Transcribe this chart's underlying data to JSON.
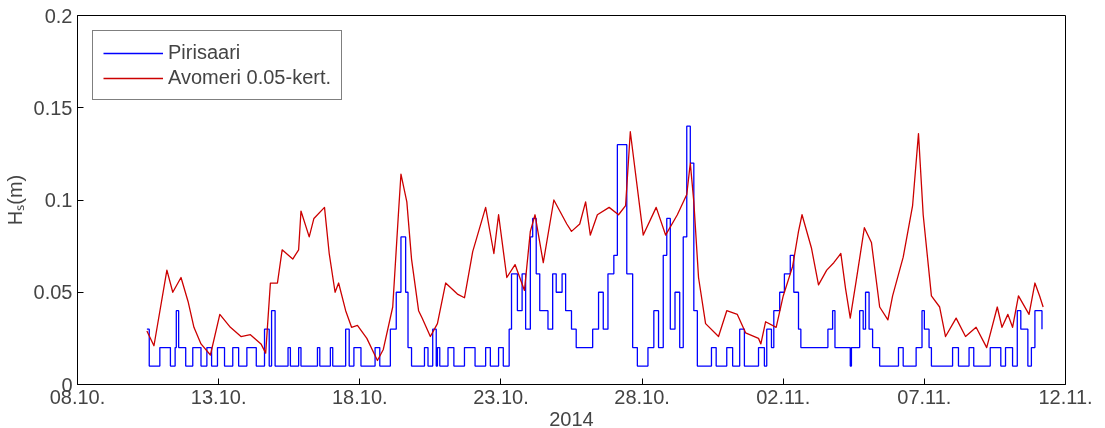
{
  "chart_data": {
    "type": "line",
    "xlabel": "2014",
    "ylabel": "Hₛ(m)",
    "xlim": [
      "2014-10-08",
      "2014-11-12"
    ],
    "xticks": [
      {
        "value": "2014-10-08",
        "label": "08.10."
      },
      {
        "value": "2014-10-13",
        "label": "13.10."
      },
      {
        "value": "2014-10-18",
        "label": "18.10."
      },
      {
        "value": "2014-10-23",
        "label": "23.10."
      },
      {
        "value": "2014-10-28",
        "label": "28.10."
      },
      {
        "value": "2014-11-02",
        "label": "02.11."
      },
      {
        "value": "2014-11-07",
        "label": "07.11."
      },
      {
        "value": "2014-11-12",
        "label": "12.11."
      }
    ],
    "ylim": [
      0,
      0.2
    ],
    "yticks": [
      0,
      0.05,
      0.1,
      0.15,
      0.2
    ],
    "grid": false,
    "legend": "top left",
    "series": [
      {
        "name": "Pirisaari",
        "type": "step",
        "color": "#0000ff",
        "x": [
          "2014-10-10T11:00",
          "2014-10-10T13:00",
          "2014-10-10T22:00",
          "2014-10-11T07:00",
          "2014-10-11T11:00",
          "2014-10-11T12:00",
          "2014-10-11T14:00",
          "2014-10-11T20:00",
          "2014-10-12T02:00",
          "2014-10-12T09:00",
          "2014-10-12T14:00",
          "2014-10-12T18:00",
          "2014-10-12T23:00",
          "2014-10-13T05:00",
          "2014-10-13T12:00",
          "2014-10-13T17:00",
          "2014-10-14T00:00",
          "2014-10-14T08:00",
          "2014-10-14T15:00",
          "2014-10-14T19:00",
          "2014-10-14T21:00",
          "2014-10-15T00:00",
          "2014-10-15T11:00",
          "2014-10-15T13:00",
          "2014-10-15T20:00",
          "2014-10-15T22:00",
          "2014-10-16T12:00",
          "2014-10-16T14:00",
          "2014-10-16T23:00",
          "2014-10-17T01:00",
          "2014-10-17T12:00",
          "2014-10-17T15:00",
          "2014-10-17T19:00",
          "2014-10-18T01:00",
          "2014-10-18T13:00",
          "2014-10-18T17:00",
          "2014-10-19T02:00",
          "2014-10-19T07:00",
          "2014-10-19T11:00",
          "2014-10-19T15:00",
          "2014-10-19T17:00",
          "2014-10-19T20:00",
          "2014-10-20T07:00",
          "2014-10-20T10:00",
          "2014-10-20T14:00",
          "2014-10-20T17:00",
          "2014-10-20T18:00",
          "2014-10-20T20:00",
          "2014-10-21T03:00",
          "2014-10-21T08:00",
          "2014-10-21T17:00",
          "2014-10-22T02:00",
          "2014-10-22T11:00",
          "2014-10-22T15:00",
          "2014-10-22T22:00",
          "2014-10-23T02:00",
          "2014-10-23T07:00",
          "2014-10-23T09:00",
          "2014-10-23T14:00",
          "2014-10-23T18:00",
          "2014-10-23T21:00",
          "2014-10-24T01:00",
          "2014-10-24T03:00",
          "2014-10-24T06:00",
          "2014-10-24T09:00",
          "2014-10-24T14:00",
          "2014-10-24T16:00",
          "2014-10-24T20:00",
          "2014-10-24T23:00",
          "2014-10-25T04:00",
          "2014-10-25T07:00",
          "2014-10-25T12:00",
          "2014-10-25T16:00",
          "2014-10-26T00:00",
          "2014-10-26T06:00",
          "2014-10-26T11:00",
          "2014-10-26T15:00",
          "2014-10-26T19:00",
          "2014-10-27T00:00",
          "2014-10-27T03:00",
          "2014-10-27T09:00",
          "2014-10-27T11:00",
          "2014-10-27T16:00",
          "2014-10-27T20:00",
          "2014-10-28T01:00",
          "2014-10-28T05:00",
          "2014-10-28T10:00",
          "2014-10-28T14:00",
          "2014-10-28T18:00",
          "2014-10-28T21:00",
          "2014-10-29T00:00",
          "2014-10-29T04:00",
          "2014-10-29T08:00",
          "2014-10-29T11:00",
          "2014-10-29T14:00",
          "2014-10-29T17:00",
          "2014-10-29T20:00",
          "2014-10-29T23:00",
          "2014-10-30T11:00",
          "2014-10-30T15:00",
          "2014-10-31T00:00",
          "2014-10-31T05:00",
          "2014-10-31T11:00",
          "2014-10-31T15:00",
          "2014-10-31T23:00",
          "2014-11-01T03:00",
          "2014-11-01T08:00",
          "2014-11-01T10:00",
          "2014-11-01T14:00",
          "2014-11-01T16:00",
          "2014-11-01T21:00",
          "2014-11-02T01:00",
          "2014-11-02T06:00",
          "2014-11-02T09:00",
          "2014-11-02T13:00",
          "2014-11-02T15:00",
          "2014-11-02T22:00",
          "2014-11-03T09:00",
          "2014-11-03T14:00",
          "2014-11-03T18:00",
          "2014-11-03T20:00",
          "2014-11-04T09:00",
          "2014-11-04T10:00",
          "2014-11-04T17:00",
          "2014-11-04T20:00",
          "2014-11-04T22:00",
          "2014-11-05T01:00",
          "2014-11-05T04:00",
          "2014-11-05T10:00",
          "2014-11-05T17:00",
          "2014-11-06T02:00",
          "2014-11-06T06:00",
          "2014-11-06T17:00",
          "2014-11-06T22:00",
          "2014-11-07T00:00",
          "2014-11-07T04:00",
          "2014-11-07T06:00",
          "2014-11-07T15:00",
          "2014-11-08T00:00",
          "2014-11-08T05:00",
          "2014-11-08T14:00",
          "2014-11-08T18:00",
          "2014-11-09T03:00",
          "2014-11-09T08:00",
          "2014-11-09T17:00",
          "2014-11-09T21:00",
          "2014-11-10T03:00",
          "2014-11-10T07:00",
          "2014-11-10T10:00",
          "2014-11-10T16:00",
          "2014-11-10T19:00",
          "2014-11-10T22:00",
          "2014-11-11T04:00"
        ],
        "values": [
          0.03,
          0.01,
          0.02,
          0.01,
          0.02,
          0.04,
          0.02,
          0.01,
          0.02,
          0.01,
          0.02,
          0.01,
          0.02,
          0.01,
          0.02,
          0.01,
          0.02,
          0.01,
          0.03,
          0.01,
          0.04,
          0.01,
          0.02,
          0.01,
          0.02,
          0.01,
          0.02,
          0.01,
          0.02,
          0.01,
          0.03,
          0.01,
          0.02,
          0.01,
          0.02,
          0.01,
          0.03,
          0.05,
          0.08,
          0.05,
          0.02,
          0.01,
          0.02,
          0.01,
          0.03,
          0.01,
          0.02,
          0.01,
          0.02,
          0.01,
          0.02,
          0.01,
          0.02,
          0.01,
          0.02,
          0.01,
          0.03,
          0.06,
          0.04,
          0.06,
          0.03,
          0.08,
          0.09,
          0.06,
          0.04,
          0.04,
          0.03,
          0.06,
          0.05,
          0.06,
          0.04,
          0.03,
          0.02,
          0.02,
          0.03,
          0.05,
          0.03,
          0.06,
          0.07,
          0.13,
          0.13,
          0.06,
          0.02,
          0.01,
          0.01,
          0.02,
          0.04,
          0.02,
          0.07,
          0.09,
          0.03,
          0.05,
          0.02,
          0.08,
          0.14,
          0.12,
          0.04,
          0.01,
          0.02,
          0.01,
          0.02,
          0.01,
          0.03,
          0.01,
          0.01,
          0.02,
          0.01,
          0.03,
          0.02,
          0.04,
          0.05,
          0.06,
          0.07,
          0.05,
          0.03,
          0.02,
          0.02,
          0.02,
          0.03,
          0.04,
          0.02,
          0.01,
          0.02,
          0.04,
          0.03,
          0.05,
          0.03,
          0.02,
          0.01,
          0.01,
          0.02,
          0.01,
          0.02,
          0.04,
          0.03,
          0.02,
          0.01,
          0.01,
          0.02,
          0.01,
          0.02,
          0.01,
          0.01,
          0.02,
          0.01,
          0.02,
          0.01,
          0.04,
          0.03,
          0.01,
          0.02,
          0.04,
          0.03
        ]
      },
      {
        "name": "Avomeri 0.05-kert.",
        "color": "#cc0000",
        "x": [
          "2014-10-10T11:00",
          "2014-10-10T17:00",
          "2014-10-11T04:00",
          "2014-10-11T09:00",
          "2014-10-11T16:00",
          "2014-10-11T22:00",
          "2014-10-12T03:00",
          "2014-10-12T09:00",
          "2014-10-12T17:00",
          "2014-10-13T01:00",
          "2014-10-13T10:00",
          "2014-10-13T19:00",
          "2014-10-14T03:00",
          "2014-10-14T12:00",
          "2014-10-14T16:00",
          "2014-10-14T20:00",
          "2014-10-15T02:00",
          "2014-10-15T06:00",
          "2014-10-15T15:00",
          "2014-10-15T20:00",
          "2014-10-15T22:00",
          "2014-10-16T05:00",
          "2014-10-16T09:00",
          "2014-10-16T18:00",
          "2014-10-16T22:00",
          "2014-10-17T03:00",
          "2014-10-17T06:00",
          "2014-10-17T12:00",
          "2014-10-17T17:00",
          "2014-10-17T22:00",
          "2014-10-18T06:00",
          "2014-10-18T15:00",
          "2014-10-18T20:00",
          "2014-10-19T04:00",
          "2014-10-19T09:00",
          "2014-10-19T11:00",
          "2014-10-19T16:00",
          "2014-10-19T20:00",
          "2014-10-20T02:00",
          "2014-10-20T05:00",
          "2014-10-20T12:00",
          "2014-10-20T18:00",
          "2014-10-21T01:00",
          "2014-10-21T11:00",
          "2014-10-21T17:00",
          "2014-10-22T00:00",
          "2014-10-22T11:00",
          "2014-10-22T18:00",
          "2014-10-22T22:00",
          "2014-10-23T05:00",
          "2014-10-23T12:00",
          "2014-10-23T20:00",
          "2014-10-24T01:00",
          "2014-10-24T05:00",
          "2014-10-24T12:00",
          "2014-10-24T21:00",
          "2014-10-25T08:00",
          "2014-10-25T12:00",
          "2014-10-25T19:00",
          "2014-10-26T00:00",
          "2014-10-26T04:00",
          "2014-10-26T10:00",
          "2014-10-26T20:00",
          "2014-10-27T04:00",
          "2014-10-27T10:00",
          "2014-10-27T14:00",
          "2014-10-28T01:00",
          "2014-10-28T12:00",
          "2014-10-28T20:00",
          "2014-10-29T06:00",
          "2014-10-29T14:00",
          "2014-10-29T17:00",
          "2014-10-29T20:00",
          "2014-10-30T00:00",
          "2014-10-30T06:00",
          "2014-10-30T17:00",
          "2014-10-31T00:00",
          "2014-10-31T09:00",
          "2014-10-31T16:00",
          "2014-11-01T03:00",
          "2014-11-01T05:00",
          "2014-11-01T09:00",
          "2014-11-01T18:00",
          "2014-11-02T00:00",
          "2014-11-02T08:00",
          "2014-11-02T13:00",
          "2014-11-02T16:00",
          "2014-11-03T00:00",
          "2014-11-03T06:00",
          "2014-11-03T13:00",
          "2014-11-03T19:00",
          "2014-11-04T01:00",
          "2014-11-04T05:00",
          "2014-11-04T09:00",
          "2014-11-04T14:00",
          "2014-11-04T21:00",
          "2014-11-05T03:00",
          "2014-11-05T10:00",
          "2014-11-05T17:00",
          "2014-11-05T21:00",
          "2014-11-06T06:00",
          "2014-11-06T14:00",
          "2014-11-06T19:00",
          "2014-11-06T23:00",
          "2014-11-07T06:00",
          "2014-11-07T13:00",
          "2014-11-07T18:00",
          "2014-11-08T03:00",
          "2014-11-08T11:00",
          "2014-11-08T20:00",
          "2014-11-09T05:00",
          "2014-11-09T14:00",
          "2014-11-09T18:00",
          "2014-11-09T23:00",
          "2014-11-10T03:00",
          "2014-11-10T08:00",
          "2014-11-10T17:00",
          "2014-11-10T22:00",
          "2014-11-11T02:00",
          "2014-11-11T05:00"
        ],
        "values": [
          0.029,
          0.021,
          0.062,
          0.05,
          0.058,
          0.045,
          0.031,
          0.022,
          0.016,
          0.038,
          0.031,
          0.026,
          0.027,
          0.022,
          0.017,
          0.055,
          0.055,
          0.073,
          0.068,
          0.073,
          0.094,
          0.08,
          0.09,
          0.096,
          0.071,
          0.05,
          0.055,
          0.04,
          0.031,
          0.032,
          0.025,
          0.013,
          0.019,
          0.042,
          0.094,
          0.114,
          0.099,
          0.068,
          0.04,
          0.036,
          0.026,
          0.033,
          0.055,
          0.049,
          0.047,
          0.072,
          0.096,
          0.071,
          0.092,
          0.058,
          0.065,
          0.051,
          0.083,
          0.092,
          0.066,
          0.1,
          0.087,
          0.083,
          0.087,
          0.099,
          0.081,
          0.092,
          0.096,
          0.092,
          0.097,
          0.137,
          0.081,
          0.096,
          0.081,
          0.092,
          0.103,
          0.12,
          0.099,
          0.058,
          0.033,
          0.026,
          0.04,
          0.038,
          0.028,
          0.025,
          0.022,
          0.034,
          0.031,
          0.048,
          0.064,
          0.083,
          0.092,
          0.074,
          0.054,
          0.062,
          0.066,
          0.071,
          0.052,
          0.036,
          0.056,
          0.085,
          0.077,
          0.042,
          0.035,
          0.048,
          0.069,
          0.097,
          0.136,
          0.092,
          0.048,
          0.042,
          0.026,
          0.036,
          0.026,
          0.031,
          0.02,
          0.042,
          0.031,
          0.038,
          0.031,
          0.048,
          0.038,
          0.055,
          0.048,
          0.042
        ]
      }
    ]
  }
}
